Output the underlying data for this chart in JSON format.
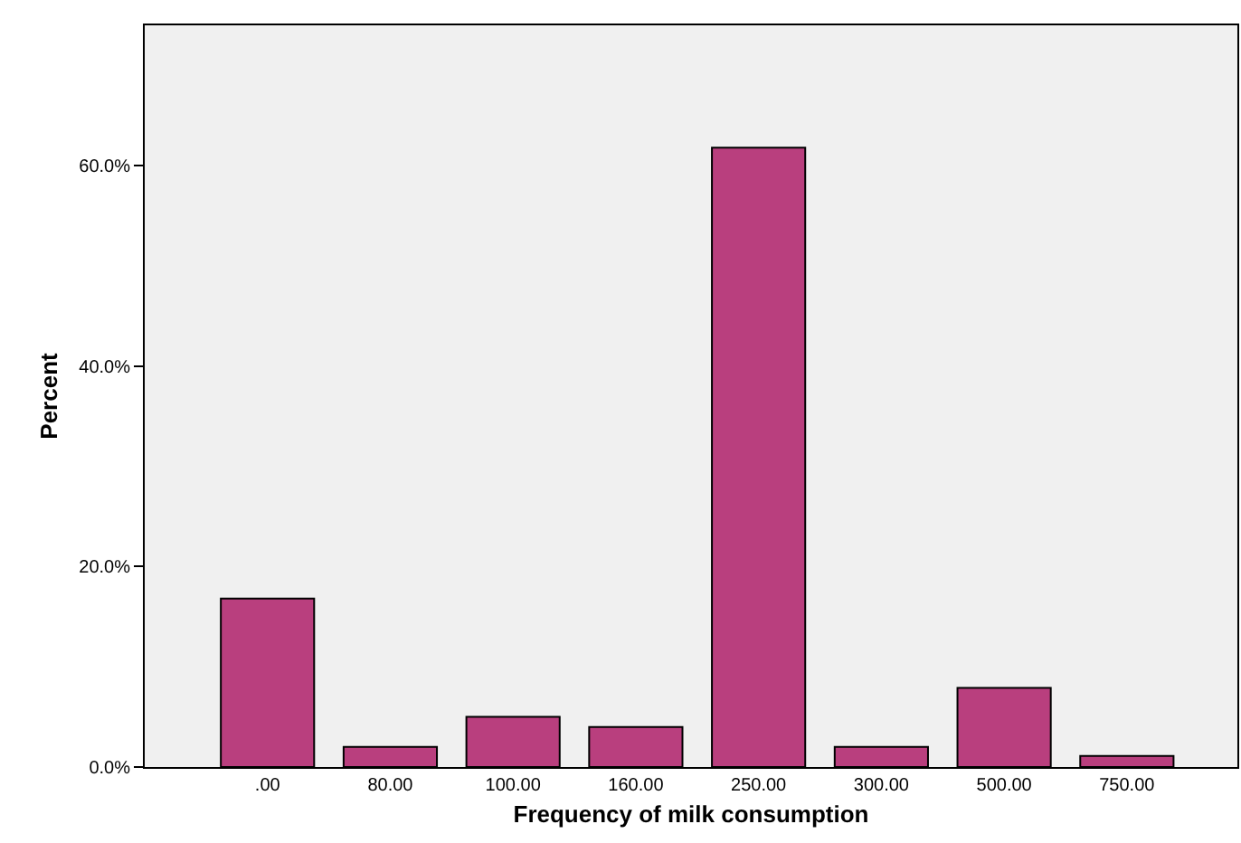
{
  "chart_data": {
    "type": "bar",
    "xlabel": "Frequency of milk consumption",
    "ylabel": "Percent",
    "categories": [
      ".00",
      "80.00",
      "100.00",
      "160.00",
      "250.00",
      "300.00",
      "500.00",
      "750.00"
    ],
    "values": [
      16.8,
      2.0,
      5.0,
      4.0,
      61.8,
      2.0,
      7.9,
      1.1
    ],
    "color": "#b93f7e",
    "ylim": [
      0,
      74
    ],
    "yticks": [
      {
        "value": 0,
        "label": "0.0%"
      },
      {
        "value": 20,
        "label": "20.0%"
      },
      {
        "value": 40,
        "label": "40.0%"
      },
      {
        "value": 60,
        "label": "60.0%"
      }
    ],
    "grid": false
  }
}
